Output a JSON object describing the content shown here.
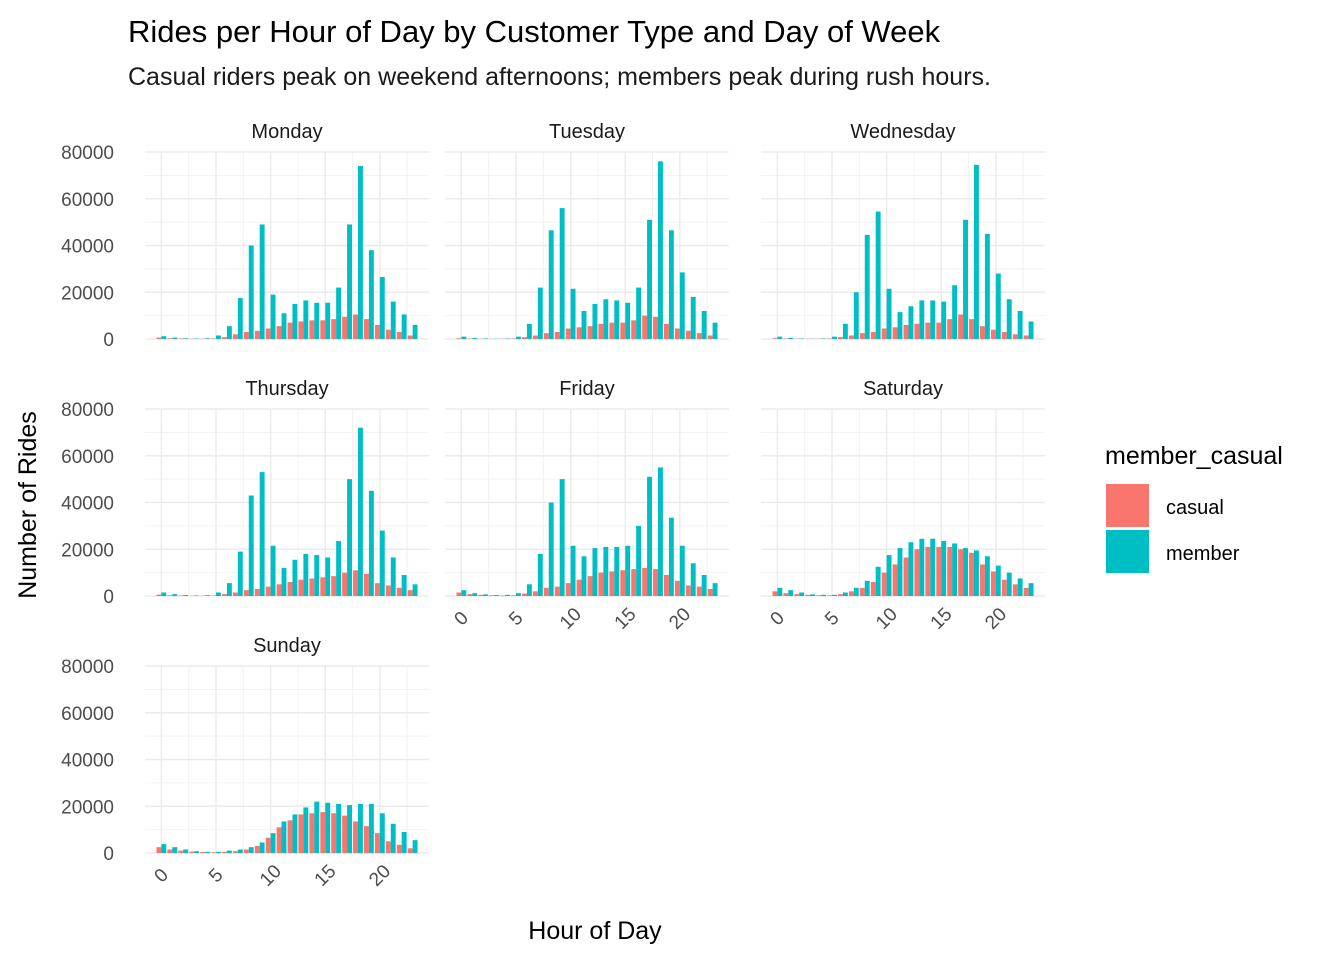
{
  "chart_data": {
    "type": "bar",
    "title": "Rides per Hour of Day by Customer Type and Day of Week",
    "subtitle": "Casual riders peak on weekend afternoons; members peak during rush hours.",
    "xlabel": "Hour of Day",
    "ylabel": "Number of Rides",
    "ylim": [
      0,
      80000
    ],
    "yticks": [
      0,
      20000,
      40000,
      60000,
      80000
    ],
    "xticks": [
      0,
      5,
      10,
      15,
      20
    ],
    "x": [
      0,
      1,
      2,
      3,
      4,
      5,
      6,
      7,
      8,
      9,
      10,
      11,
      12,
      13,
      14,
      15,
      16,
      17,
      18,
      19,
      20,
      21,
      22,
      23
    ],
    "grid": true,
    "legend": {
      "title": "member_casual",
      "placement": "right",
      "entries": [
        {
          "label": "casual",
          "color": "#F8766D"
        },
        {
          "label": "member",
          "color": "#00BFC4"
        }
      ]
    },
    "facets": [
      {
        "day": "Monday",
        "casual": [
          600,
          300,
          200,
          100,
          100,
          200,
          800,
          2000,
          3000,
          3500,
          4500,
          5500,
          7000,
          7500,
          8000,
          8000,
          8500,
          9500,
          10500,
          8500,
          6000,
          4000,
          3000,
          1500
        ],
        "member": [
          1200,
          600,
          300,
          200,
          300,
          1500,
          5500,
          17500,
          40000,
          49000,
          19000,
          11000,
          15000,
          16500,
          15500,
          15500,
          22000,
          49000,
          74000,
          38000,
          26500,
          16000,
          10500,
          6000
        ]
      },
      {
        "day": "Tuesday",
        "casual": [
          300,
          200,
          100,
          100,
          100,
          200,
          800,
          1500,
          2500,
          3000,
          4500,
          5000,
          5500,
          6500,
          7000,
          7000,
          8000,
          10000,
          9500,
          6500,
          4500,
          3500,
          2500,
          1500
        ],
        "member": [
          1000,
          400,
          200,
          100,
          200,
          1000,
          6500,
          22000,
          46500,
          56000,
          21500,
          12000,
          15000,
          17000,
          16500,
          15500,
          22000,
          51000,
          76000,
          46500,
          28500,
          18000,
          12000,
          7000
        ]
      },
      {
        "day": "Wednesday",
        "casual": [
          300,
          200,
          100,
          100,
          100,
          200,
          800,
          1500,
          2500,
          3000,
          4500,
          5000,
          6000,
          6500,
          7000,
          7000,
          8500,
          10500,
          8500,
          5500,
          4000,
          3000,
          2000,
          1500
        ],
        "member": [
          1000,
          500,
          200,
          100,
          200,
          1000,
          6500,
          20000,
          44500,
          54500,
          21500,
          11500,
          14000,
          16500,
          16500,
          16000,
          23000,
          51000,
          74500,
          45000,
          28000,
          17000,
          12000,
          7500
        ]
      },
      {
        "day": "Thursday",
        "casual": [
          600,
          300,
          200,
          100,
          100,
          200,
          800,
          1500,
          2500,
          3000,
          4000,
          5000,
          6000,
          7000,
          7500,
          8000,
          8500,
          10000,
          11000,
          9500,
          5500,
          4500,
          3500,
          2500
        ],
        "member": [
          1500,
          800,
          400,
          200,
          300,
          1500,
          5500,
          19000,
          43000,
          53000,
          21500,
          12000,
          15500,
          18000,
          17500,
          16500,
          23500,
          50000,
          72000,
          45000,
          28000,
          16500,
          9000,
          5000
        ]
      },
      {
        "day": "Friday",
        "casual": [
          1500,
          800,
          500,
          300,
          200,
          300,
          1000,
          2000,
          3500,
          4000,
          5500,
          7000,
          8500,
          10000,
          10500,
          11000,
          11500,
          12000,
          11500,
          9000,
          6500,
          4500,
          4000,
          3000
        ],
        "member": [
          2500,
          1200,
          700,
          400,
          500,
          1200,
          5000,
          18000,
          40000,
          50000,
          21500,
          17000,
          20500,
          21000,
          21000,
          21500,
          30000,
          51000,
          55000,
          33500,
          21500,
          14000,
          9000,
          5500
        ]
      },
      {
        "day": "Saturday",
        "casual": [
          2000,
          1200,
          800,
          500,
          300,
          300,
          800,
          2000,
          3500,
          6000,
          10000,
          13500,
          16500,
          20000,
          21000,
          21000,
          21000,
          20000,
          18500,
          13500,
          10500,
          7000,
          5000,
          3500
        ],
        "member": [
          3500,
          2500,
          1500,
          700,
          500,
          500,
          1500,
          3500,
          6500,
          12500,
          17500,
          20500,
          23000,
          24500,
          24500,
          23500,
          22500,
          20500,
          19500,
          17000,
          13000,
          10000,
          7500,
          5500
        ]
      },
      {
        "day": "Sunday",
        "casual": [
          2500,
          1500,
          1000,
          600,
          400,
          300,
          500,
          800,
          1500,
          3000,
          6500,
          11000,
          14000,
          16500,
          17000,
          17500,
          17000,
          16000,
          13500,
          11500,
          8500,
          5000,
          3500,
          2000
        ],
        "member": [
          3800,
          2500,
          1500,
          800,
          500,
          500,
          1000,
          1500,
          2500,
          4500,
          8500,
          13500,
          16500,
          19500,
          22000,
          21500,
          21000,
          20500,
          21000,
          21000,
          17000,
          12500,
          9000,
          5500
        ]
      }
    ]
  }
}
